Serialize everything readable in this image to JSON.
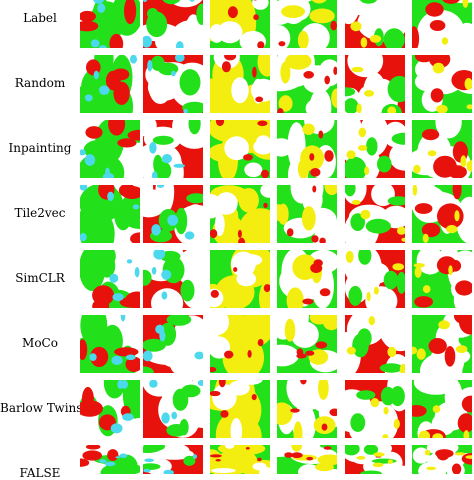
{
  "figure": {
    "rows": [
      {
        "label": "Label"
      },
      {
        "label": "Random"
      },
      {
        "label": "Inpainting"
      },
      {
        "label": "Tile2vec"
      },
      {
        "label": "SimCLR"
      },
      {
        "label": "MoCo"
      },
      {
        "label": "Barlow Twins"
      },
      {
        "label": "FALSE"
      }
    ],
    "class_colors": {
      "red": "#e8120c",
      "green": "#22e11a",
      "yellow": "#f4ee10",
      "cyan": "#4cd9ee",
      "white": "#ffffff"
    },
    "column_themes": [
      [
        "white",
        "green",
        "red",
        "cyan"
      ],
      [
        "red",
        "white",
        "green",
        "cyan"
      ],
      [
        "green",
        "yellow",
        "white",
        "red"
      ],
      [
        "green",
        "white",
        "yellow",
        "red"
      ],
      [
        "red",
        "white",
        "green",
        "yellow"
      ],
      [
        "green",
        "white",
        "red",
        "yellow"
      ]
    ]
  }
}
